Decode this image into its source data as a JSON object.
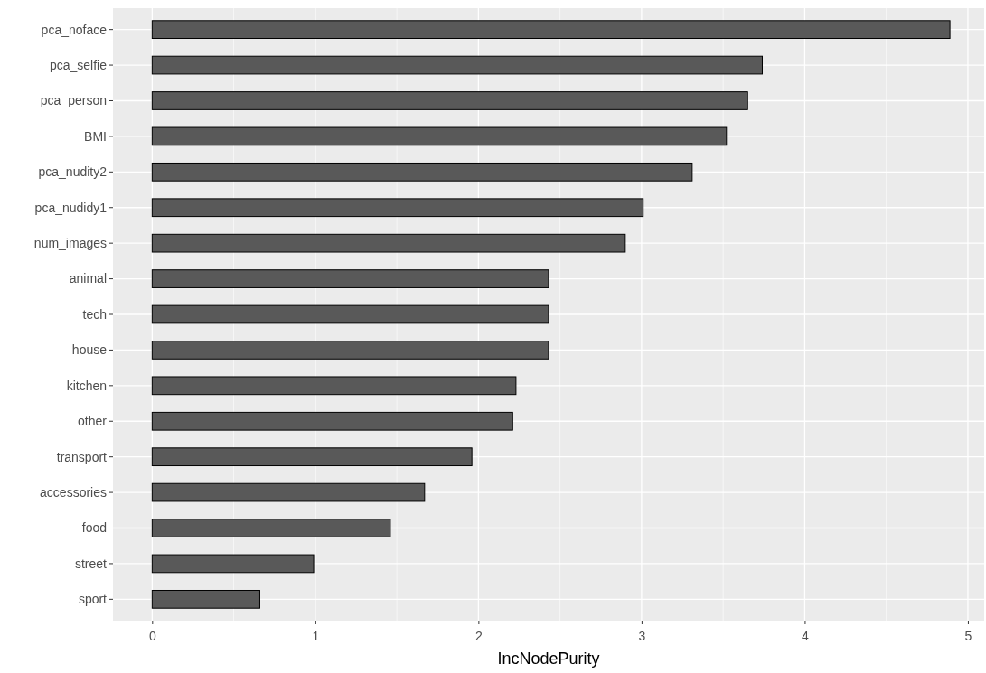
{
  "chart_data": {
    "type": "bar",
    "orientation": "horizontal",
    "xlabel": "IncNodePurity",
    "categories": [
      "pca_noface",
      "pca_selfie",
      "pca_person",
      "BMI",
      "pca_nudity2",
      "pca_nudidy1",
      "num_images",
      "animal",
      "tech",
      "house",
      "kitchen",
      "other",
      "transport",
      "accessories",
      "food",
      "street",
      "sport"
    ],
    "values": [
      4.89,
      3.74,
      3.65,
      3.52,
      3.31,
      3.01,
      2.9,
      2.43,
      2.43,
      2.43,
      2.23,
      2.21,
      1.96,
      1.67,
      1.46,
      0.99,
      0.66
    ],
    "color": "#595959",
    "xlim": [
      -0.24,
      5.1
    ],
    "xticks": [
      0,
      1,
      2,
      3,
      4,
      5
    ],
    "grid": true
  }
}
